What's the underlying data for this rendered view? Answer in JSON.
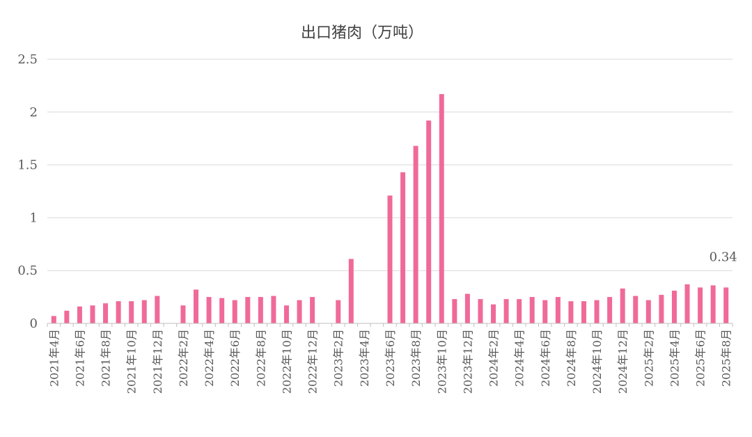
{
  "chart_data": {
    "type": "bar",
    "title": "出口猪肉（万吨）",
    "xlabel": "",
    "ylabel": "",
    "ylim": [
      0,
      2.5
    ],
    "yticks": [
      "0",
      "0.5",
      "1",
      "1.5",
      "2",
      "2.5"
    ],
    "ytick_values": [
      0,
      0.5,
      1,
      1.5,
      2,
      2.5
    ],
    "grid": true,
    "legend": "none",
    "bar_color": "#f06a99",
    "categories": [
      "2021年4月",
      "2021年5月",
      "2021年6月",
      "2021年7月",
      "2021年8月",
      "2021年9月",
      "2021年10月",
      "2021年11月",
      "2021年12月",
      "2022年1月",
      "2022年2月",
      "2022年3月",
      "2022年4月",
      "2022年5月",
      "2022年6月",
      "2022年7月",
      "2022年8月",
      "2022年9月",
      "2022年10月",
      "2022年11月",
      "2022年12月",
      "2023年1月",
      "2023年2月",
      "2023年3月",
      "2023年4月",
      "2023年5月",
      "2023年6月",
      "2023年7月",
      "2023年8月",
      "2023年9月",
      "2023年10月",
      "2023年11月",
      "2023年12月",
      "2024年1月",
      "2024年2月",
      "2024年3月",
      "2024年4月",
      "2024年5月",
      "2024年6月",
      "2024年7月",
      "2024年8月",
      "2024年9月",
      "2024年10月",
      "2024年11月",
      "2024年12月",
      "2025年1月",
      "2025年2月",
      "2025年3月",
      "2025年4月",
      "2025年5月",
      "2025年6月",
      "2025年7月",
      "2025年8月"
    ],
    "tick_labels": [
      "2021年4月",
      "",
      "2021年6月",
      "",
      "2021年8月",
      "",
      "2021年10月",
      "",
      "2021年12月",
      "",
      "2022年2月",
      "",
      "2022年4月",
      "",
      "2022年6月",
      "",
      "2022年8月",
      "",
      "2022年10月",
      "",
      "2022年12月",
      "",
      "2023年2月",
      "",
      "2023年4月",
      "",
      "2023年6月",
      "",
      "2023年8月",
      "",
      "2023年10月",
      "",
      "2023年12月",
      "",
      "2024年2月",
      "",
      "2024年4月",
      "",
      "2024年6月",
      "",
      "2024年8月",
      "",
      "2024年10月",
      "",
      "2024年12月",
      "",
      "2025年2月",
      "",
      "2025年4月",
      "",
      "2025年6月",
      "",
      "2025年8月"
    ],
    "values": [
      0.07,
      0.12,
      0.16,
      0.17,
      0.19,
      0.21,
      0.21,
      0.22,
      0.26,
      null,
      0.17,
      0.32,
      0.25,
      0.24,
      0.22,
      0.25,
      0.25,
      0.26,
      0.17,
      0.22,
      0.25,
      null,
      0.22,
      0.61,
      null,
      null,
      1.21,
      1.43,
      1.68,
      1.92,
      2.17,
      0.23,
      0.28,
      0.23,
      0.18,
      0.23,
      0.23,
      0.25,
      0.22,
      0.25,
      0.21,
      0.21,
      0.22,
      0.25,
      0.33,
      0.26,
      0.22,
      0.27,
      0.31,
      0.37,
      0.34,
      0.36,
      0.34
    ],
    "data_labels": [
      {
        "index": 52,
        "text": "0.34"
      }
    ]
  }
}
